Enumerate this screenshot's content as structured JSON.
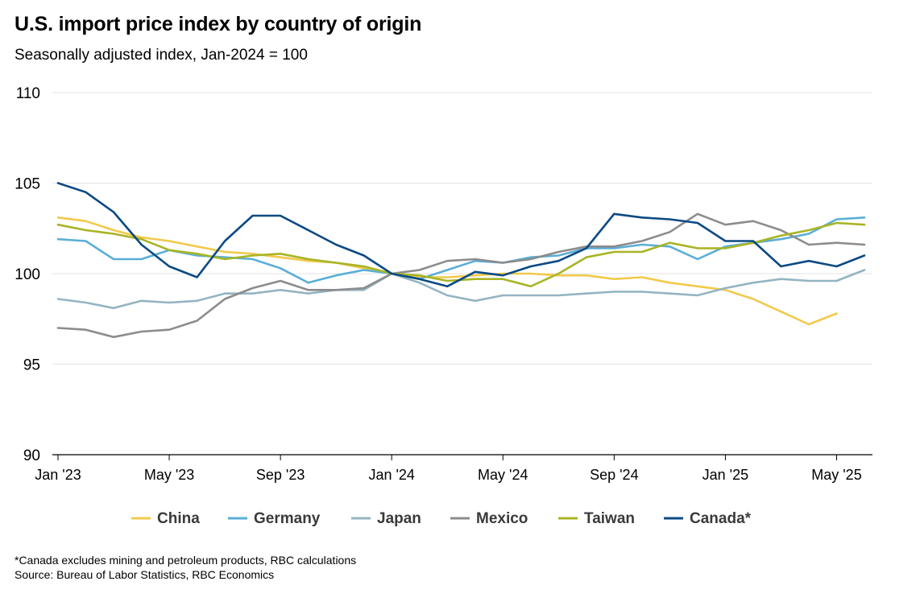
{
  "header": {
    "title": "U.S. import price index by country of origin",
    "subtitle": "Seasonally adjusted index, Jan-2024 = 100"
  },
  "footer": {
    "note": "*Canada excludes mining and petroleum products, RBC calculations",
    "source": "Source: Bureau of Labor Statistics, RBC Economics"
  },
  "chart_data": {
    "type": "line",
    "title": "U.S. import price index by country of origin",
    "subtitle": "Seasonally adjusted index, Jan-2024 = 100",
    "xlabel": "",
    "ylabel": "",
    "ylim": [
      90,
      110
    ],
    "yticks": [
      90,
      95,
      100,
      105,
      110
    ],
    "grid": "horizontal",
    "legend_position": "bottom",
    "x": [
      "Jan '23",
      "Feb '23",
      "Mar '23",
      "Apr '23",
      "May '23",
      "Jun '23",
      "Jul '23",
      "Aug '23",
      "Sep '23",
      "Oct '23",
      "Nov '23",
      "Dec '23",
      "Jan '24",
      "Feb '24",
      "Mar '24",
      "Apr '24",
      "May '24",
      "Jun '24",
      "Jul '24",
      "Aug '24",
      "Sep '24",
      "Oct '24",
      "Nov '24",
      "Dec '24",
      "Jan '25",
      "Feb '25",
      "Mar '25",
      "Apr '25",
      "May '25",
      "Jun '25"
    ],
    "xtick_labels": [
      "Jan '23",
      "May '23",
      "Sep '23",
      "Jan '24",
      "May '24",
      "Sep '24",
      "Jan '25",
      "May '25"
    ],
    "xtick_index": [
      0,
      4,
      8,
      12,
      16,
      20,
      24,
      28
    ],
    "series": [
      {
        "name": "China",
        "color": "#f2c94c",
        "values": [
          103.1,
          102.9,
          102.4,
          102.0,
          101.8,
          101.5,
          101.2,
          101.1,
          100.9,
          100.7,
          100.6,
          100.3,
          100.0,
          99.8,
          99.8,
          99.9,
          100.0,
          100.0,
          99.9,
          99.9,
          99.7,
          99.8,
          99.5,
          99.3,
          99.1,
          98.6,
          97.9,
          97.2,
          97.8,
          null
        ]
      },
      {
        "name": "Germany",
        "color": "#5aaed6",
        "values": [
          101.9,
          101.8,
          100.8,
          100.8,
          101.3,
          101.0,
          100.9,
          100.8,
          100.3,
          99.5,
          99.9,
          100.2,
          100.0,
          99.7,
          100.2,
          100.7,
          100.6,
          100.9,
          101.0,
          101.4,
          101.4,
          101.6,
          101.5,
          100.8,
          101.5,
          101.7,
          101.9,
          102.2,
          103.0,
          103.1
        ]
      },
      {
        "name": "Japan",
        "color": "#94b4c2",
        "values": [
          98.6,
          98.4,
          98.1,
          98.5,
          98.4,
          98.5,
          98.9,
          98.9,
          99.1,
          98.9,
          99.1,
          99.1,
          100.0,
          99.5,
          98.8,
          98.5,
          98.8,
          98.8,
          98.8,
          98.9,
          99.0,
          99.0,
          98.9,
          98.8,
          99.2,
          99.5,
          99.7,
          99.6,
          99.6,
          100.2
        ]
      },
      {
        "name": "Mexico",
        "color": "#8c8c8c",
        "values": [
          97.0,
          96.9,
          96.5,
          96.8,
          96.9,
          97.4,
          98.6,
          99.2,
          99.6,
          99.1,
          99.1,
          99.2,
          100.0,
          100.2,
          100.7,
          100.8,
          100.6,
          100.8,
          101.2,
          101.5,
          101.5,
          101.8,
          102.3,
          103.3,
          102.7,
          102.9,
          102.4,
          101.6,
          101.7,
          101.6
        ]
      },
      {
        "name": "Taiwan",
        "color": "#a8b424",
        "values": [
          102.7,
          102.4,
          102.2,
          101.9,
          101.3,
          101.1,
          100.8,
          101.0,
          101.1,
          100.8,
          100.6,
          100.4,
          100.0,
          99.9,
          99.6,
          99.7,
          99.7,
          99.3,
          100.0,
          100.9,
          101.2,
          101.2,
          101.7,
          101.4,
          101.4,
          101.7,
          102.1,
          102.4,
          102.8,
          102.7
        ]
      },
      {
        "name": "Canada*",
        "color": "#0b4a84",
        "values": [
          105.0,
          104.5,
          103.4,
          101.6,
          100.4,
          99.8,
          101.8,
          103.2,
          103.2,
          102.4,
          101.6,
          101.0,
          100.0,
          99.7,
          99.3,
          100.1,
          99.9,
          100.4,
          100.7,
          101.4,
          103.3,
          103.1,
          103.0,
          102.8,
          101.8,
          101.8,
          100.4,
          100.7,
          100.4,
          101.0
        ]
      }
    ]
  }
}
